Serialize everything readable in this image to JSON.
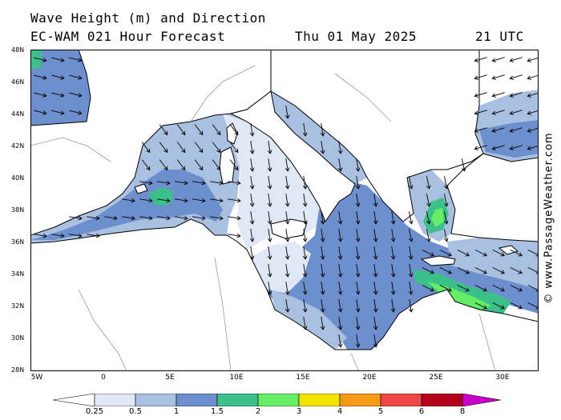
{
  "title": {
    "line1": "Wave Height (m) and Direction",
    "line2": "EC-WAM 021 Hour Forecast",
    "date": "Thu 01 May 2025",
    "time": "21 UTC"
  },
  "map": {
    "region": "Mediterranean Sea",
    "lat_labels": [
      "48N",
      "46N",
      "44N",
      "42N",
      "40N",
      "38N",
      "36N",
      "34N",
      "32N",
      "30N",
      "28N"
    ],
    "lon_labels": [
      "5W",
      "0",
      "5E",
      "10E",
      "15E",
      "20E",
      "25E",
      "30E"
    ],
    "colors": {
      "land": "#ffffff",
      "sea_025_05": "#dfe8f4",
      "sea_05_1": "#a9c0e0",
      "sea_1_15": "#6d8fcd",
      "sea_15_2": "#3dbf8a",
      "sea_2_3": "#66ee66",
      "coastline": "#000000",
      "border": "#999999"
    }
  },
  "colorbar": {
    "ticks": [
      "0.25",
      "0.5",
      "1",
      "1.5",
      "2",
      "3",
      "4",
      "5",
      "6",
      "8"
    ],
    "colors": [
      "#ffffff",
      "#dfe8f4",
      "#a9c0e0",
      "#6d8fcd",
      "#3dbf8a",
      "#66ee66",
      "#f2e400",
      "#f59a18",
      "#ec4848",
      "#b3001a",
      "#c800c8"
    ]
  },
  "credit": "© www.PassageWeather.com"
}
